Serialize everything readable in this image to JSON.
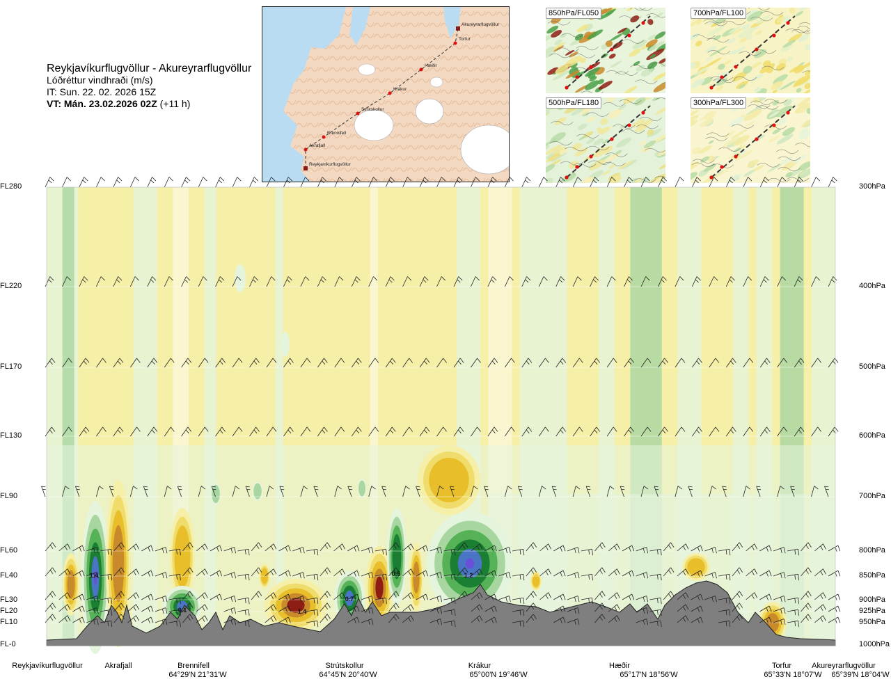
{
  "header": {
    "route": "Reykjavíkurflugvöllur - Akureyrarflugvöllur",
    "product": "Lóðréttur vindhraði (m/s)",
    "issue_time": "IT: Sun. 22. 02. 2026 15Z",
    "valid_time_bold": "VT: Mán. 23.02.2026 02Z",
    "valid_time_offset": " (+11 h)"
  },
  "route_map": {
    "waypoints": [
      "Reykjavíkurflugvöllur",
      "Akrafjall",
      "Brennifell",
      "Strútskollur",
      "Krákur",
      "Hæðir",
      "Torfur",
      "Akureyrarflugvöllur"
    ]
  },
  "mini_maps": [
    {
      "label": "850hPa/FL050"
    },
    {
      "label": "700hPa/FL100"
    },
    {
      "label": "500hPa/FL180"
    },
    {
      "label": "300hPa/FL300"
    }
  ],
  "chart_data": {
    "type": "heatmap",
    "variable": "vertical wind speed",
    "unit": "m/s",
    "left_axis_levels": [
      "FL280",
      "FL220",
      "FL170",
      "FL130",
      "FL90",
      "FL60",
      "FL40",
      "FL30",
      "FL20",
      "FL10",
      "FL-0"
    ],
    "right_axis_levels": [
      "300hPa",
      "400hPa",
      "500hPa",
      "600hPa",
      "700hPa",
      "800hPa",
      "850hPa",
      "900hPa",
      "925hPa",
      "950hPa",
      "1000hPa"
    ],
    "wind_barb_levels_hPa": [
      300,
      400,
      500,
      600,
      700,
      800,
      850,
      900,
      925,
      950
    ],
    "locations": [
      {
        "name": "Reykjavíkurflugvöllur",
        "coord": ""
      },
      {
        "name": "Akrafjall",
        "coord": ""
      },
      {
        "name": "Brennifell",
        "coord": "64°29'N 21°31'W"
      },
      {
        "name": "Strútskollur",
        "coord": "64°45'N 20°40'W"
      },
      {
        "name": "Krákur",
        "coord": "65°00'N 19°46'W"
      },
      {
        "name": "Hæðir",
        "coord": "65°17'N 18°56'W"
      },
      {
        "name": "Torfur",
        "coord": "65°33'N 18°07'W"
      },
      {
        "name": "Akureyrarflugvöllur",
        "coord": "65°39'N 18°04'W"
      }
    ],
    "extrema_labels": [
      "1.4",
      "0.1",
      "1.4",
      "0.7",
      "0.5",
      "1.2"
    ],
    "colors": {
      "weak_down": "#f6efa8",
      "down": "#f0dc6a",
      "down_strong": "#e8bf2a",
      "down_stronger": "#c98a2b",
      "down_max": "#8e1e14",
      "weak_up": "#e5f4dc",
      "up": "#a8d6a0",
      "up_strong": "#55b257",
      "up_stronger": "#1a7f32",
      "up_max_blue": "#4a74c4",
      "up_max_violet": "#6a4fd8",
      "terrain": "#7f7f7f"
    }
  }
}
